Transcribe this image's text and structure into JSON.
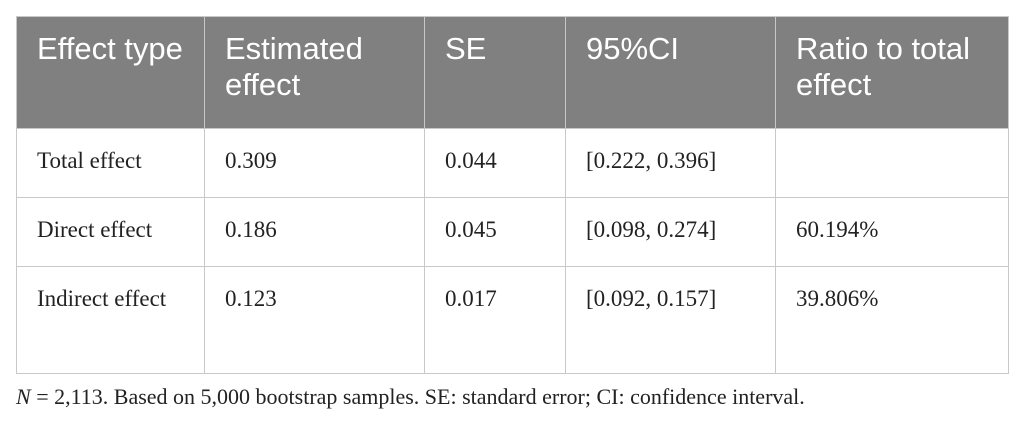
{
  "table": {
    "header": [
      "Effect type",
      "Estimated effect",
      "SE",
      "95%CI",
      "Ratio to total effect"
    ],
    "rows": [
      [
        "Total effect",
        "0.309",
        "0.044",
        "[0.222, 0.396]",
        null
      ],
      [
        "Direct effect",
        "0.186",
        "0.045",
        "[0.098, 0.274]",
        "60.194%"
      ],
      [
        "Indirect effect",
        "0.123",
        "0.017",
        "[0.092, 0.157]",
        "39.806%"
      ]
    ]
  },
  "footnote": {
    "variable": "N",
    "text": " = 2,113. Based on 5,000 bootstrap samples. SE: standard error; CI: confidence interval."
  }
}
